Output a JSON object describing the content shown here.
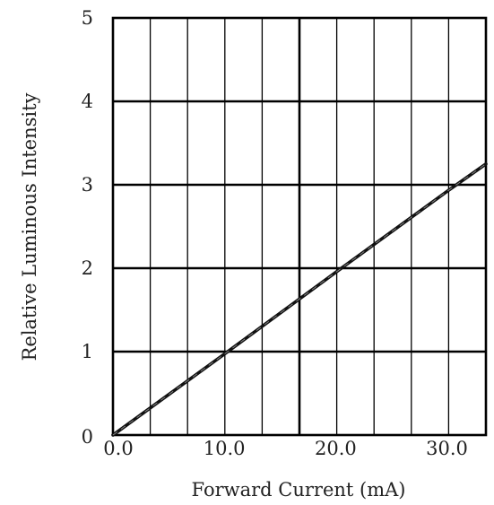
{
  "chart_data": {
    "type": "line",
    "xlabel": "Forward Current (mA)",
    "ylabel": "Relative Luminous Intensity",
    "xlim": [
      0,
      33.5
    ],
    "ylim": [
      0,
      5
    ],
    "x_ticks": [
      0,
      10,
      20,
      30
    ],
    "x_tick_labels": [
      "0.0",
      "10.0",
      "20.0",
      "30.0"
    ],
    "y_ticks": [
      0,
      1,
      2,
      3,
      4,
      5
    ],
    "y_tick_labels": [
      "0",
      "1",
      "2",
      "3",
      "4",
      "5"
    ],
    "x_minor_step": 3.35,
    "grid": true,
    "series": [
      {
        "x": [
          0,
          10,
          20,
          30,
          33.5
        ],
        "y": [
          0,
          0.97,
          1.95,
          2.92,
          3.25
        ]
      }
    ]
  },
  "colors": {
    "line": "#111111",
    "grid": "#000000",
    "text": "#222222"
  }
}
